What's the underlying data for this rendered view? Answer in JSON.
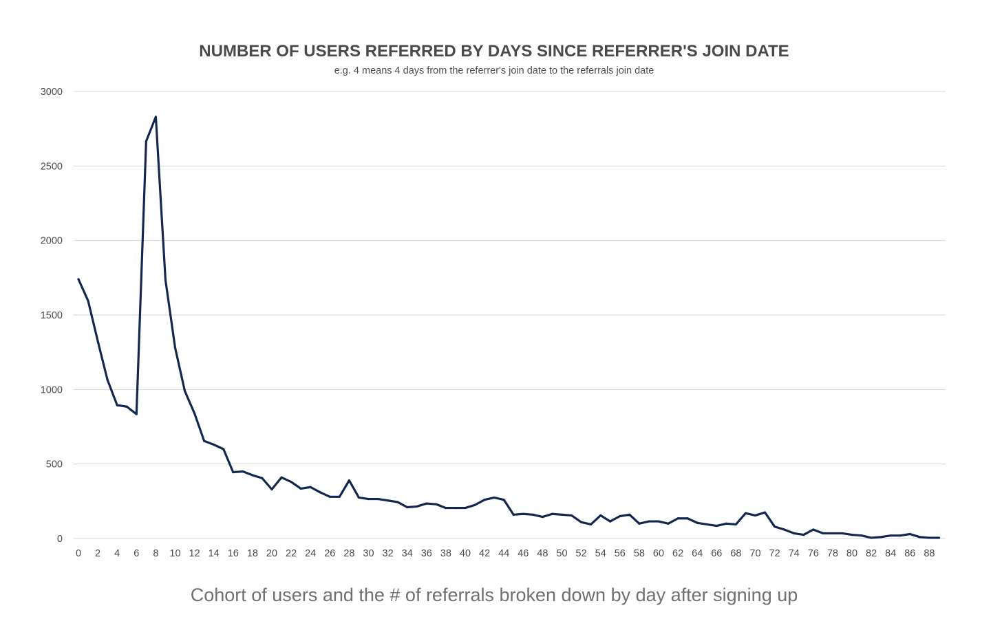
{
  "chart_data": {
    "type": "line",
    "title": "NUMBER OF USERS REFERRED BY DAYS SINCE REFERRER'S JOIN DATE",
    "subtitle": "e.g. 4 means 4 days from the referrer's join date to the referrals join date",
    "caption": "Cohort of users and the # of referrals broken down by day after signing up",
    "xlabel": "",
    "ylabel": "",
    "x_tick_labels": [
      "0",
      "2",
      "4",
      "6",
      "8",
      "10",
      "12",
      "14",
      "16",
      "18",
      "20",
      "22",
      "24",
      "26",
      "28",
      "30",
      "32",
      "34",
      "36",
      "38",
      "40",
      "42",
      "44",
      "46",
      "48",
      "50",
      "52",
      "54",
      "56",
      "58",
      "60",
      "62",
      "64",
      "66",
      "68",
      "70",
      "72",
      "74",
      "76",
      "78",
      "80",
      "82",
      "84",
      "86",
      "88"
    ],
    "y_tick_labels": [
      "0",
      "500",
      "1000",
      "1500",
      "2000",
      "2500",
      "3000"
    ],
    "xlim": [
      0,
      89
    ],
    "ylim": [
      0,
      3000
    ],
    "grid": "horizontal",
    "legend": "none",
    "colors": {
      "line": "#14274e",
      "grid": "#d4d4d4"
    },
    "series": [
      {
        "x": [
          0,
          1,
          2,
          3,
          4,
          5,
          6,
          7,
          8,
          9,
          10,
          11,
          12,
          13,
          14,
          15,
          16,
          17,
          18,
          19,
          20,
          21,
          22,
          23,
          24,
          25,
          26,
          27,
          28,
          29,
          30,
          31,
          32,
          33,
          34,
          35,
          36,
          37,
          38,
          39,
          40,
          41,
          42,
          43,
          44,
          45,
          46,
          47,
          48,
          49,
          50,
          51,
          52,
          53,
          54,
          55,
          56,
          57,
          58,
          59,
          60,
          61,
          62,
          63,
          64,
          65,
          66,
          67,
          68,
          69,
          70,
          71,
          72,
          73,
          74,
          75,
          76,
          77,
          78,
          79,
          80,
          81,
          82,
          83,
          84,
          85,
          86,
          87,
          88,
          89
        ],
        "values": [
          1740,
          1595,
          1325,
          1065,
          895,
          885,
          835,
          2665,
          2830,
          1735,
          1280,
          990,
          840,
          655,
          630,
          600,
          445,
          450,
          425,
          405,
          330,
          410,
          380,
          335,
          345,
          310,
          280,
          280,
          390,
          275,
          265,
          265,
          255,
          245,
          210,
          215,
          235,
          230,
          205,
          205,
          205,
          225,
          260,
          275,
          260,
          160,
          165,
          160,
          145,
          165,
          160,
          155,
          110,
          95,
          155,
          115,
          150,
          160,
          100,
          115,
          115,
          100,
          135,
          135,
          105,
          95,
          85,
          100,
          95,
          170,
          155,
          175,
          80,
          60,
          35,
          25,
          60,
          35,
          35,
          35,
          25,
          20,
          5,
          10,
          20,
          20,
          30,
          10,
          5,
          5
        ]
      }
    ]
  }
}
